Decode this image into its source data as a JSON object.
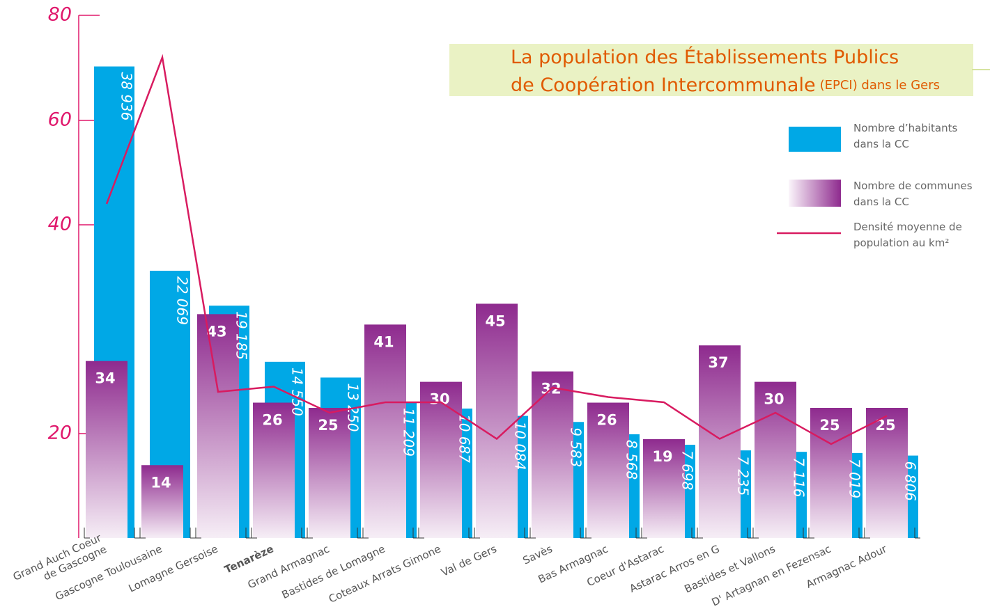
{
  "chart_data": {
    "type": "bar",
    "title": "La population des Établissements Publics de Coopération Intercommunale",
    "title_suffix": "(EPCI) dans le Gers",
    "categories": [
      "Grand Auch Coeur\nde Gascogne",
      "Gascogne Toulousaine",
      "Lomagne Gersoise",
      "Tenarèze",
      "Grand Armagnac",
      "Bastides de Lomagne",
      "Coteaux Arrats Gimone",
      "Val de Gers",
      "Savès",
      "Bas Armagnac",
      "Coeur d'Astarac",
      "Astarac Arros en G",
      "Bastides et Vallons",
      "D' Artagnan en Fezensac",
      "Armagnac Adour"
    ],
    "highlight_category": "Tenarèze",
    "series": [
      {
        "name": "Nombre d’habitants dans la CC",
        "color": "#00a8e6",
        "values": [
          38936,
          22069,
          19185,
          14550,
          13250,
          11209,
          10687,
          10084,
          9583,
          8568,
          7698,
          7235,
          7116,
          7019,
          6806
        ],
        "value_labels": [
          "38 936",
          "22 069",
          "19 185",
          "14 550",
          "13 250",
          "11 209",
          "10 687",
          "10 084",
          "9 583",
          "8 568",
          "7 698",
          "7 235",
          "7 116",
          "7 019",
          "6 806"
        ]
      },
      {
        "name": "Nombre de communes dans la CC",
        "color": "#8e2a8e",
        "values": [
          34,
          14,
          43,
          26,
          25,
          41,
          30,
          45,
          32,
          26,
          19,
          37,
          30,
          25,
          25
        ]
      },
      {
        "name": "Densité moyenne de population au km²",
        "color": "#d81b60",
        "type": "line",
        "values": [
          44,
          72,
          24,
          24.5,
          22,
          23,
          23,
          19,
          24.4,
          23.5,
          23,
          19,
          22,
          18,
          21.7
        ]
      }
    ],
    "ylim": [
      0,
      80
    ],
    "yticks": [
      20,
      40,
      60,
      80
    ]
  }
}
